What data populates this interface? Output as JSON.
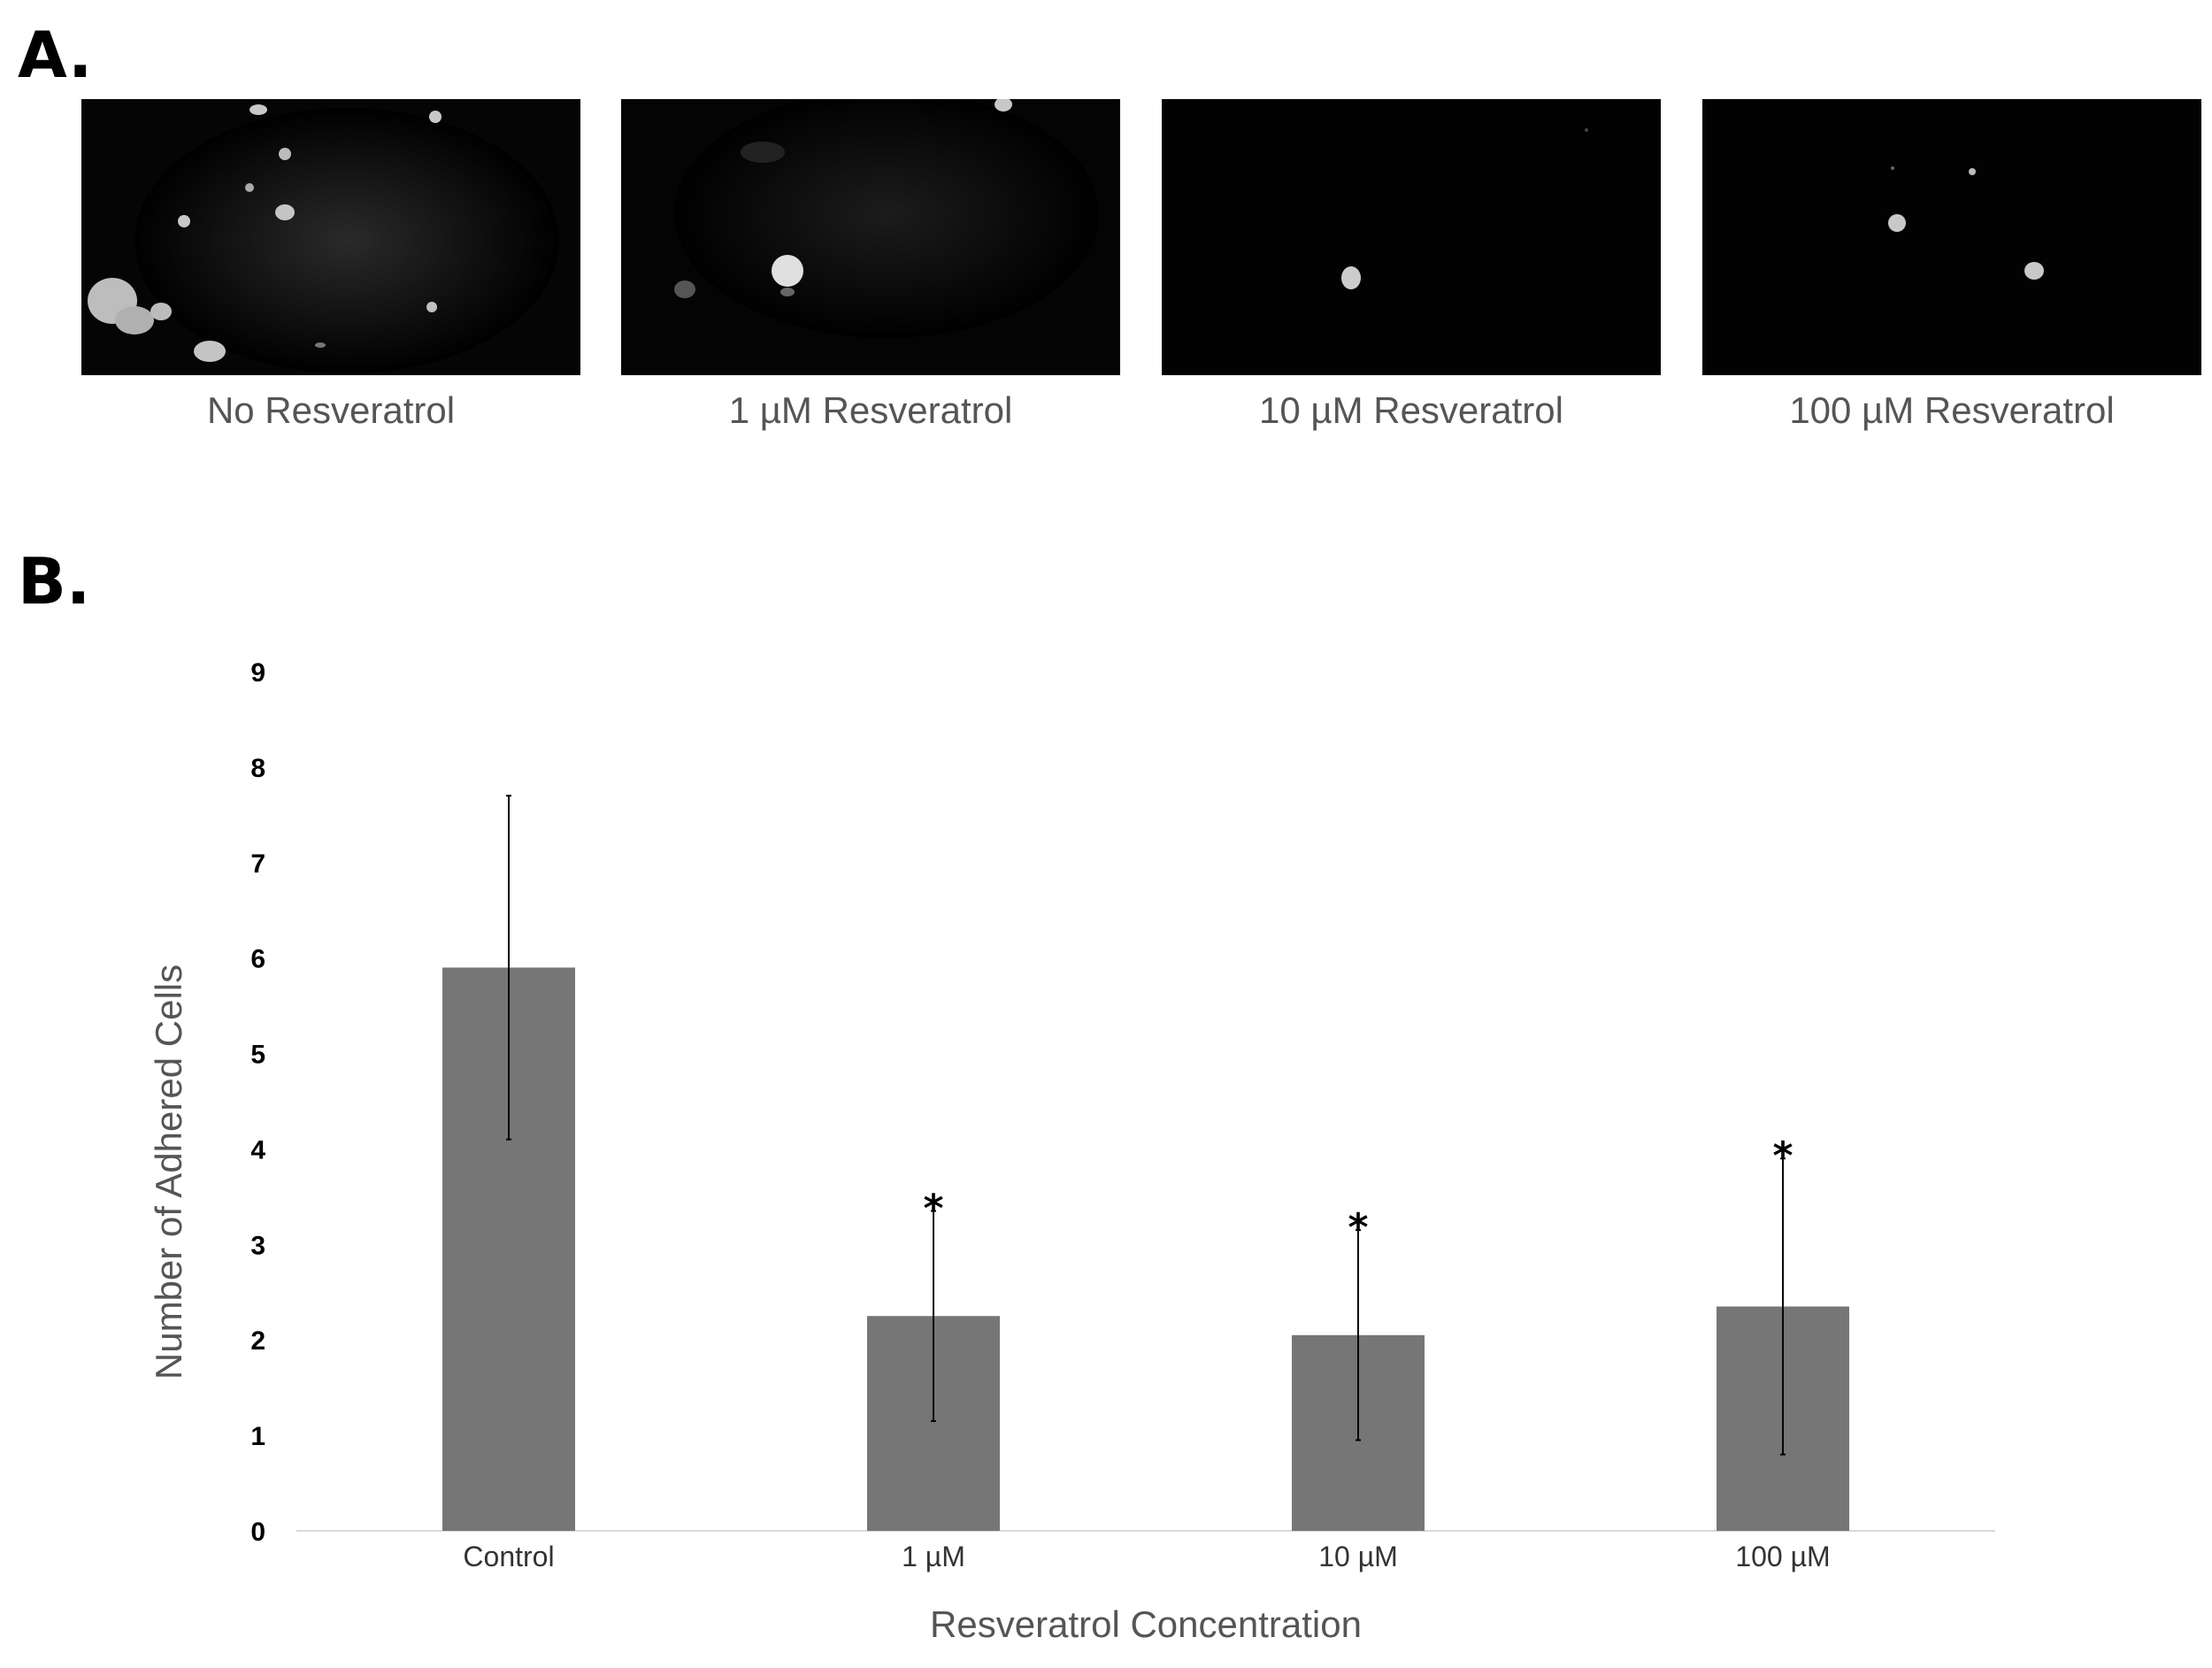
{
  "panels": {
    "a_label": "A.",
    "b_label": "B."
  },
  "micrographs": [
    {
      "caption": "No Resveratrol"
    },
    {
      "caption": "1 µM Resveratrol"
    },
    {
      "caption": "10 µM Resveratrol"
    },
    {
      "caption": "100 µM Resveratrol"
    }
  ],
  "colors": {
    "bar": "#767676",
    "error_bar": "#000000",
    "axis": "#d9d9d9",
    "micrograph_bg": "#000000",
    "cell": "#cfcfcf"
  },
  "chart_data": {
    "type": "bar",
    "categories": [
      "Control",
      "1 µM",
      "10 µM",
      "100 µM"
    ],
    "values": [
      5.9,
      2.25,
      2.05,
      2.35
    ],
    "error_low": [
      4.1,
      1.15,
      0.95,
      0.8
    ],
    "error_high": [
      7.7,
      3.35,
      3.15,
      3.9
    ],
    "significance": [
      "",
      "*",
      "*",
      "*"
    ],
    "xlabel": "Resveratrol Concentration",
    "ylabel": "Number of Adhered Cells",
    "ylim": [
      0,
      9
    ],
    "yticks": [
      "0",
      "1",
      "2",
      "3",
      "4",
      "5",
      "6",
      "7",
      "8",
      "9"
    ],
    "grid": false
  }
}
